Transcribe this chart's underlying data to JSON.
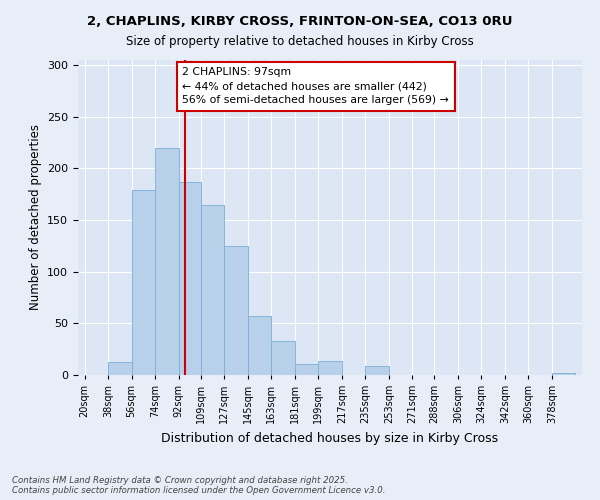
{
  "title_line1": "2, CHAPLINS, KIRBY CROSS, FRINTON-ON-SEA, CO13 0RU",
  "title_line2": "Size of property relative to detached houses in Kirby Cross",
  "xlabel": "Distribution of detached houses by size in Kirby Cross",
  "ylabel": "Number of detached properties",
  "bin_labels": [
    "20sqm",
    "38sqm",
    "56sqm",
    "74sqm",
    "92sqm",
    "109sqm",
    "127sqm",
    "145sqm",
    "163sqm",
    "181sqm",
    "199sqm",
    "217sqm",
    "235sqm",
    "253sqm",
    "271sqm",
    "288sqm",
    "306sqm",
    "324sqm",
    "342sqm",
    "360sqm",
    "378sqm"
  ],
  "bin_edges": [
    20,
    38,
    56,
    74,
    92,
    109,
    127,
    145,
    163,
    181,
    199,
    217,
    235,
    253,
    271,
    288,
    306,
    324,
    342,
    360,
    378,
    396
  ],
  "bar_heights": [
    0,
    13,
    179,
    220,
    187,
    165,
    125,
    57,
    33,
    11,
    14,
    0,
    9,
    0,
    0,
    0,
    0,
    0,
    0,
    0,
    2
  ],
  "bar_color": "#b8d0ea",
  "bar_edge_color": "#7aaed4",
  "property_size": 97,
  "vline_color": "#cc0000",
  "annotation_text": "2 CHAPLINS: 97sqm\n← 44% of detached houses are smaller (442)\n56% of semi-detached houses are larger (569) →",
  "annotation_box_color": "#ffffff",
  "annotation_box_edge": "#cc0000",
  "ylim": [
    0,
    305
  ],
  "yticks": [
    0,
    50,
    100,
    150,
    200,
    250,
    300
  ],
  "plot_bg_color": "#dce6f5",
  "fig_bg_color": "#e8eef8",
  "grid_color": "#ffffff",
  "footer_line1": "Contains HM Land Registry data © Crown copyright and database right 2025.",
  "footer_line2": "Contains public sector information licensed under the Open Government Licence v3.0."
}
